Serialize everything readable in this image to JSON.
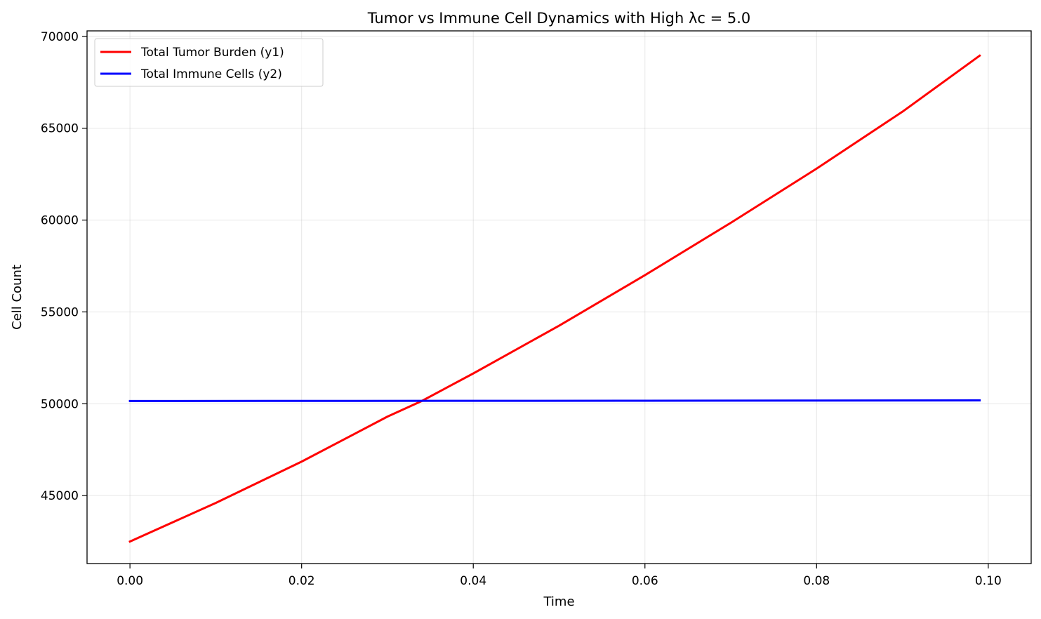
{
  "chart_data": {
    "type": "line",
    "title": "Tumor vs Immune Cell Dynamics with High λc = 5.0",
    "xlabel": "Time",
    "ylabel": "Cell Count",
    "xlim": [
      -0.005,
      0.105
    ],
    "ylim": [
      41300,
      70300
    ],
    "xticks": [
      0.0,
      0.02,
      0.04,
      0.06,
      0.08,
      0.1
    ],
    "xtick_labels": [
      "0.00",
      "0.02",
      "0.04",
      "0.06",
      "0.08",
      "0.10"
    ],
    "yticks": [
      45000,
      50000,
      55000,
      60000,
      65000,
      70000
    ],
    "ytick_labels": [
      "45000",
      "50000",
      "55000",
      "60000",
      "65000",
      "70000"
    ],
    "grid": true,
    "legend_position": "top-left",
    "series": [
      {
        "name": "Total Tumor Burden (y1)",
        "color": "#ff0000",
        "x": [
          0.0,
          0.01,
          0.02,
          0.03,
          0.034,
          0.04,
          0.05,
          0.06,
          0.07,
          0.08,
          0.09,
          0.099
        ],
        "y": [
          42500,
          44600,
          46850,
          49300,
          50150,
          51650,
          54250,
          57000,
          59850,
          62800,
          65900,
          68950
        ]
      },
      {
        "name": "Total Immune Cells (y2)",
        "color": "#0000ff",
        "x": [
          0.0,
          0.02,
          0.04,
          0.06,
          0.08,
          0.099
        ],
        "y": [
          50150,
          50155,
          50160,
          50165,
          50175,
          50185
        ]
      }
    ]
  }
}
